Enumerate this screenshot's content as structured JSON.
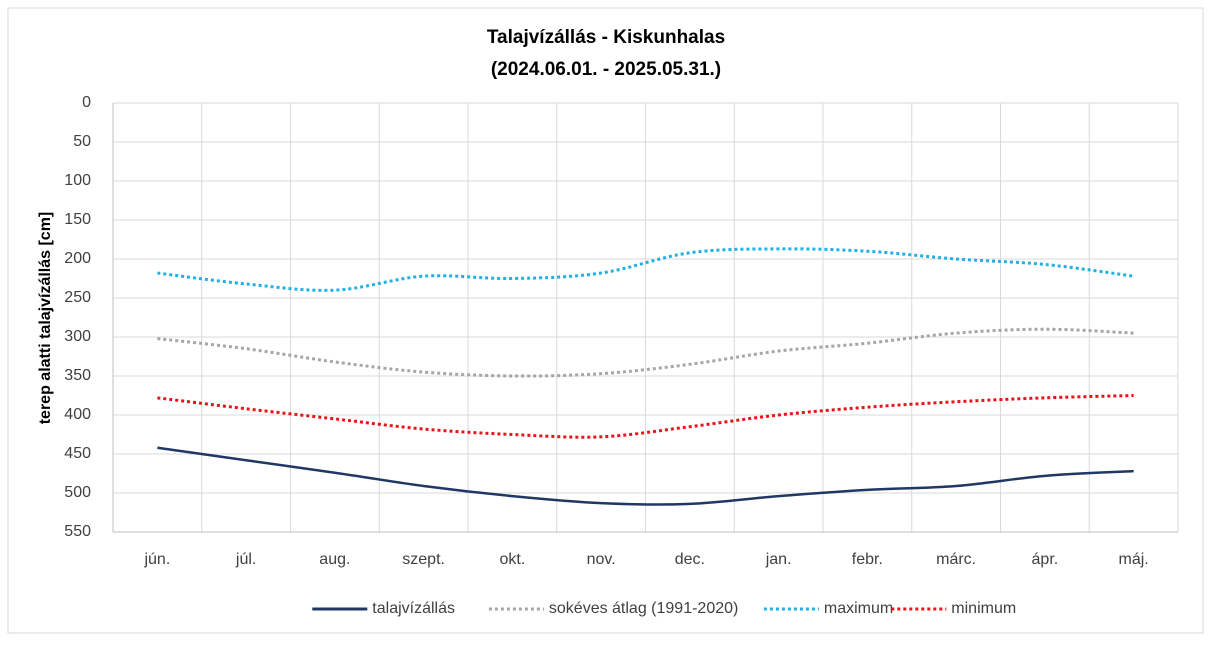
{
  "chart_data": {
    "type": "line",
    "title": [
      "Talajvízállás - Kiskunhalas",
      "(2024.06.01. - 2025.05.31.)"
    ],
    "y_label": "terep alatti talajvízállás [cm]",
    "categories": [
      "jún.",
      "júl.",
      "aug.",
      "szept.",
      "okt.",
      "nov.",
      "dec.",
      "jan.",
      "febr.",
      "márc.",
      "ápr.",
      "máj."
    ],
    "series": [
      {
        "name": "talajvízállás",
        "color": "#1f3864",
        "style": "solid",
        "values": [
          442,
          458,
          474,
          491,
          504,
          513,
          514,
          504,
          496,
          491,
          478,
          472
        ]
      },
      {
        "name": "sokéves átlag (1991-2020)",
        "color": "#a6a6a6",
        "style": "dotted",
        "values": [
          302,
          315,
          332,
          345,
          350,
          347,
          335,
          318,
          308,
          295,
          290,
          295
        ]
      },
      {
        "name": "maximum",
        "color": "#1fb0e6",
        "style": "dotted",
        "values": [
          218,
          232,
          240,
          222,
          225,
          218,
          192,
          187,
          190,
          200,
          207,
          222
        ]
      },
      {
        "name": "minimum",
        "color": "#e8141b",
        "style": "dotted",
        "values": [
          378,
          392,
          405,
          418,
          425,
          428,
          415,
          400,
          390,
          383,
          378,
          375
        ]
      }
    ],
    "ylim": [
      0,
      550
    ],
    "yticks": [
      0,
      50,
      100,
      150,
      200,
      250,
      300,
      350,
      400,
      450,
      500,
      550
    ],
    "y_inverted": true,
    "grid": true,
    "legend": "bottom"
  }
}
